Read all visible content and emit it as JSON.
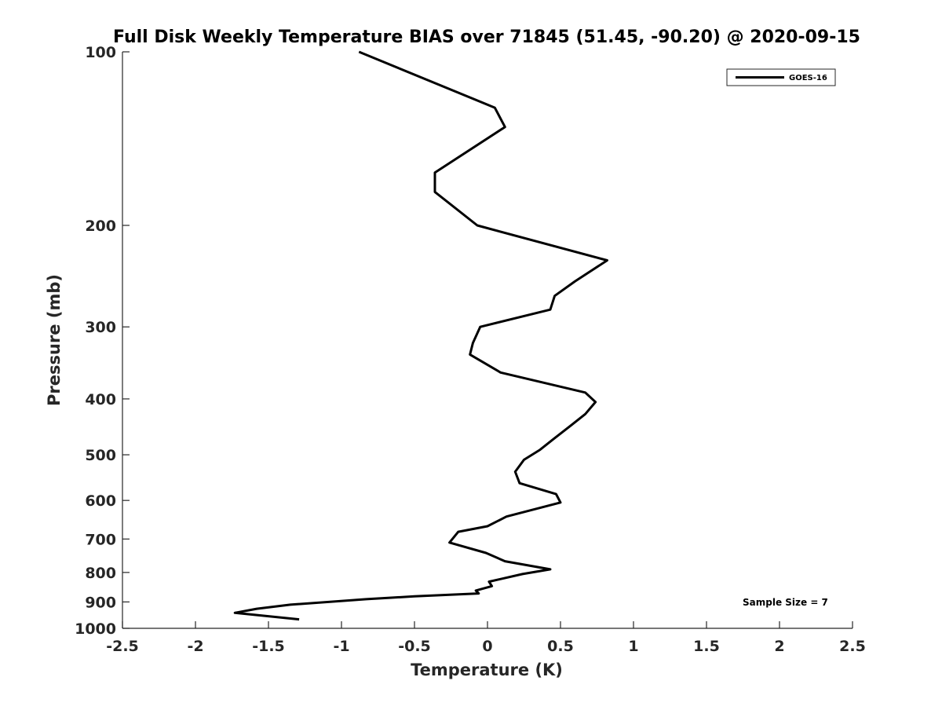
{
  "chart_data": {
    "type": "line",
    "title": "Full Disk Weekly Temperature BIAS over 71845 (51.45, -90.20) @ 2020-09-15",
    "xlabel": "Temperature (K)",
    "ylabel": "Pressure (mb)",
    "xlim": [
      -2.5,
      2.5
    ],
    "ylim": [
      100,
      1000
    ],
    "y_scale": "log",
    "y_reversed": true,
    "xticks": [
      "-2.5",
      "-2",
      "-1.5",
      "-1",
      "-0.5",
      "0",
      "0.5",
      "1",
      "1.5",
      "2",
      "2.5"
    ],
    "yticks": [
      "100",
      "200",
      "300",
      "400",
      "500",
      "600",
      "700",
      "800",
      "900",
      "1000"
    ],
    "grid": false,
    "legend_position": "top-right",
    "annotation": "Sample Size = 7",
    "line_color": "#000000",
    "series": [
      {
        "name": "GOES-16",
        "x": [
          -0.88,
          0.05,
          0.12,
          -0.36,
          -0.36,
          -0.07,
          0.82,
          0.6,
          0.46,
          0.43,
          -0.05,
          -0.1,
          -0.12,
          0.09,
          0.67,
          0.74,
          0.67,
          0.57,
          0.45,
          0.36,
          0.25,
          0.19,
          0.22,
          0.47,
          0.5,
          0.13,
          0.0,
          -0.2,
          -0.26,
          -0.01,
          0.12,
          0.43,
          0.24,
          0.01,
          0.03,
          -0.08,
          -0.06,
          -0.5,
          -0.83,
          -1.35,
          -1.58,
          -1.73,
          -1.29
        ],
        "y": [
          100,
          125,
          135,
          162,
          175,
          200,
          230,
          250,
          265,
          280,
          300,
          320,
          335,
          360,
          390,
          405,
          425,
          445,
          470,
          490,
          510,
          535,
          560,
          585,
          605,
          640,
          665,
          680,
          710,
          740,
          765,
          790,
          805,
          830,
          845,
          860,
          870,
          880,
          890,
          910,
          925,
          940,
          965
        ]
      }
    ]
  }
}
